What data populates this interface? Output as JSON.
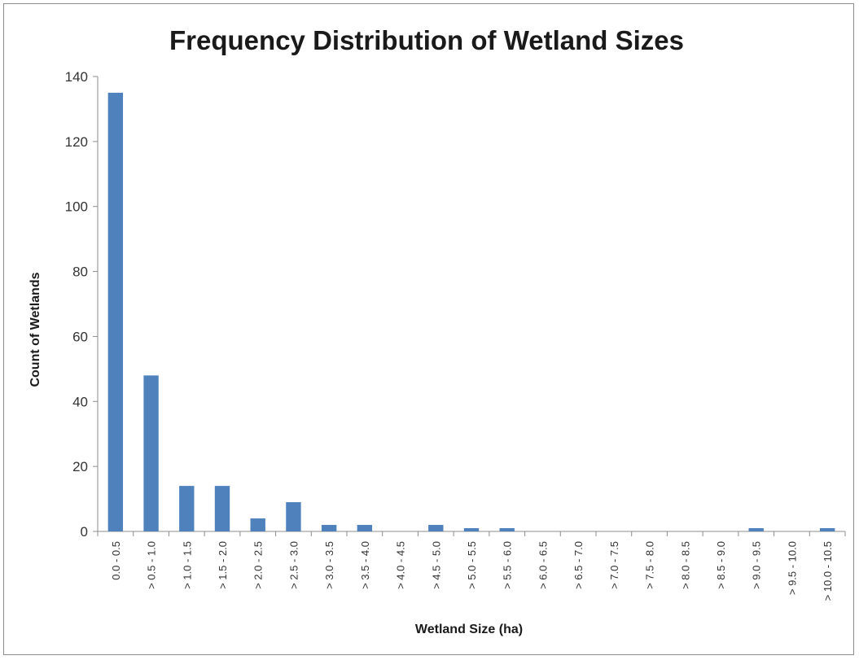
{
  "chart_data": {
    "type": "bar",
    "title": "Frequency Distribution of Wetland Sizes",
    "xlabel": "Wetland Size (ha)",
    "ylabel": "Count of Wetlands",
    "ylim": [
      0,
      140
    ],
    "yticks": [
      0,
      20,
      40,
      60,
      80,
      100,
      120,
      140
    ],
    "grid": false,
    "bar_color": "#4f81bd",
    "categories": [
      "0.0 - 0.5",
      "> 0.5 - 1.0",
      "> 1.0 - 1.5",
      "> 1.5 - 2.0",
      "> 2.0 - 2.5",
      "> 2.5 - 3.0",
      "> 3.0 - 3.5",
      "> 3.5 - 4.0",
      "> 4.0 - 4.5",
      "> 4.5 - 5.0",
      "> 5.0 - 5.5",
      "> 5.5 - 6.0",
      "> 6.0 - 6.5",
      "> 6.5 - 7.0",
      "> 7.0 - 7.5",
      "> 7.5 - 8.0",
      "> 8.0 - 8.5",
      "> 8.5 - 9.0",
      "> 9.0 - 9.5",
      "> 9.5 - 10.0",
      "> 10.0 - 10.5"
    ],
    "values": [
      135,
      48,
      14,
      14,
      4,
      9,
      2,
      2,
      0,
      2,
      1,
      1,
      0,
      0,
      0,
      0,
      0,
      0,
      1,
      0,
      1
    ]
  }
}
